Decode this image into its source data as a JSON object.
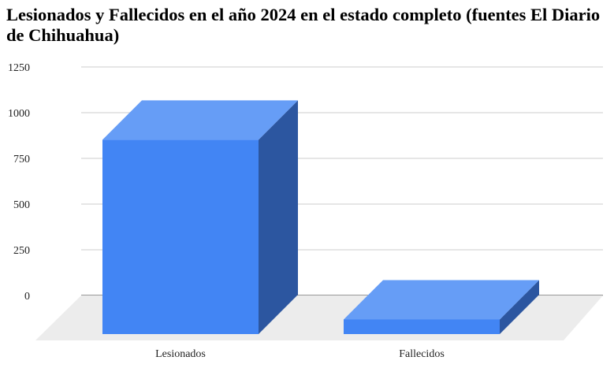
{
  "chart_data": {
    "type": "bar",
    "title": "Lesionados y Fallecidos en el año 2024 en el estado completo (fuentes El Diario de Chihuahua)",
    "categories": [
      "Lesionados",
      "Fallecidos"
    ],
    "values": [
      1063,
      80
    ],
    "ylim": [
      0,
      1250
    ],
    "yticks": [
      0,
      250,
      500,
      750,
      1000,
      1250
    ],
    "grid": true,
    "legend": "none",
    "style": "3d",
    "colors": {
      "front": "#4285f4",
      "top": "#669df6",
      "side": "#2c56a0",
      "floor": "#ececec",
      "grid": "#cccccc"
    }
  }
}
